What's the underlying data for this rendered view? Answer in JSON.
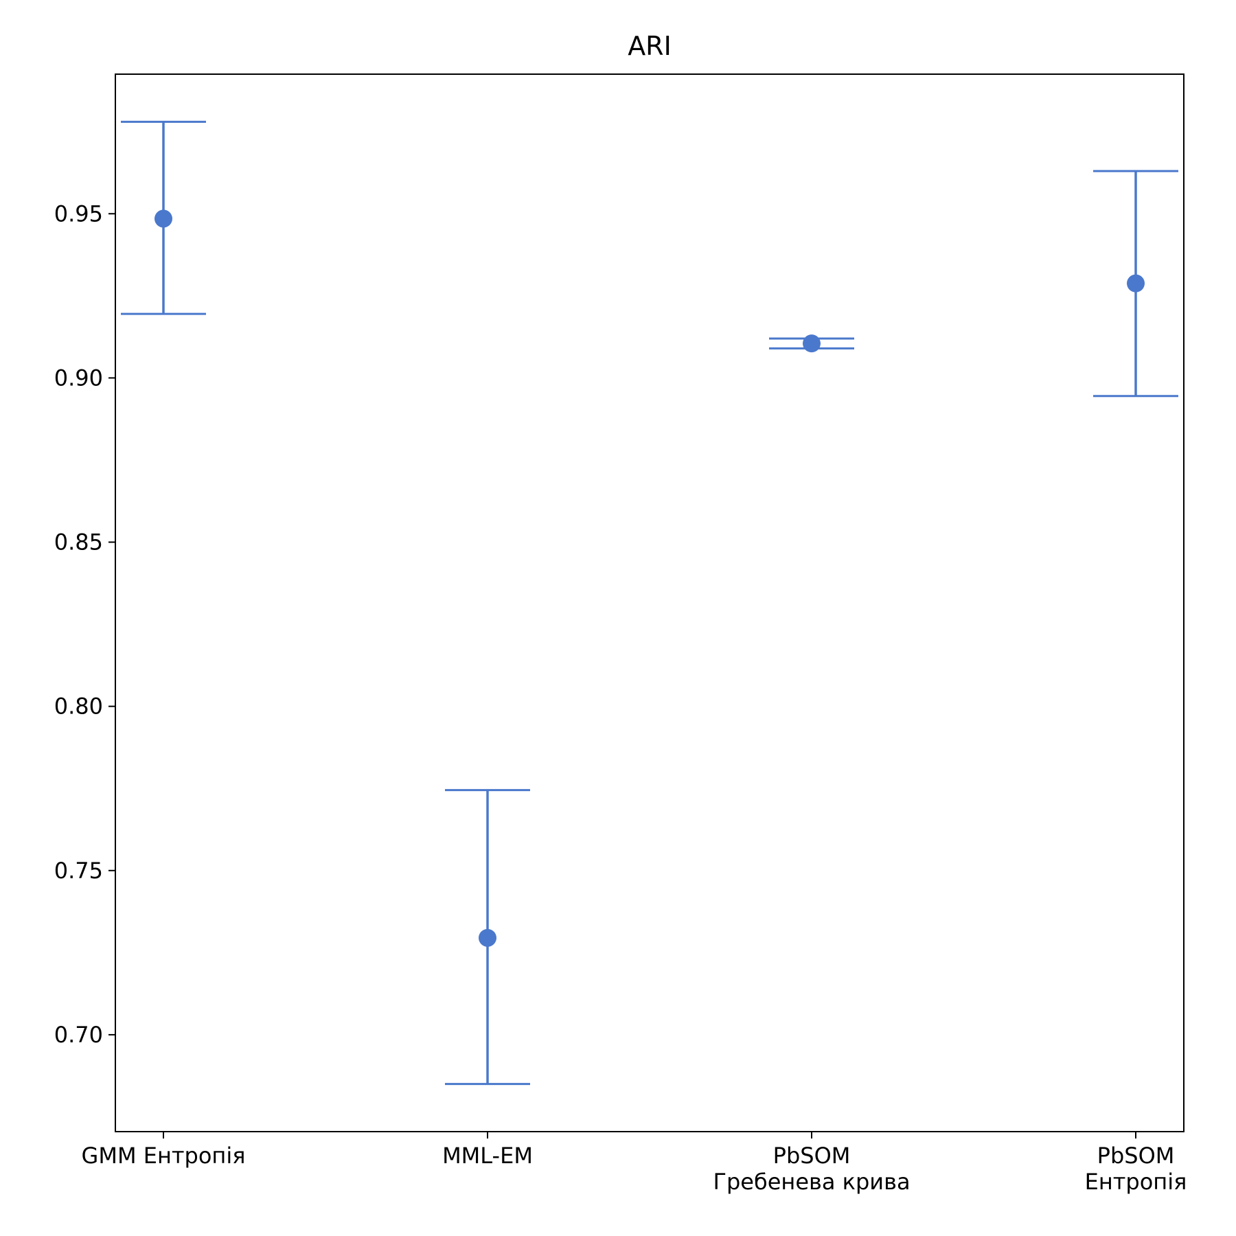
{
  "chart_data": {
    "type": "scatter",
    "title": "ARI",
    "xlabel": "",
    "ylabel": "",
    "categories": [
      [
        "GMM Ентропія"
      ],
      [
        "MML-EM"
      ],
      [
        "PbSOM",
        "Гребенева крива"
      ],
      [
        "PbSOM",
        "Ентропія"
      ]
    ],
    "values": [
      0.9485,
      0.7295,
      0.9105,
      0.9288
    ],
    "error_low": [
      0.9195,
      0.685,
      0.909,
      0.8945
    ],
    "error_high": [
      0.978,
      0.7745,
      0.912,
      0.963
    ],
    "y_ticks": [
      "0.70",
      "0.75",
      "0.80",
      "0.85",
      "0.90",
      "0.95"
    ],
    "ylim": [
      0.6705,
      0.9925
    ],
    "grid": false,
    "legend": "none",
    "color": "#4a78cc"
  }
}
